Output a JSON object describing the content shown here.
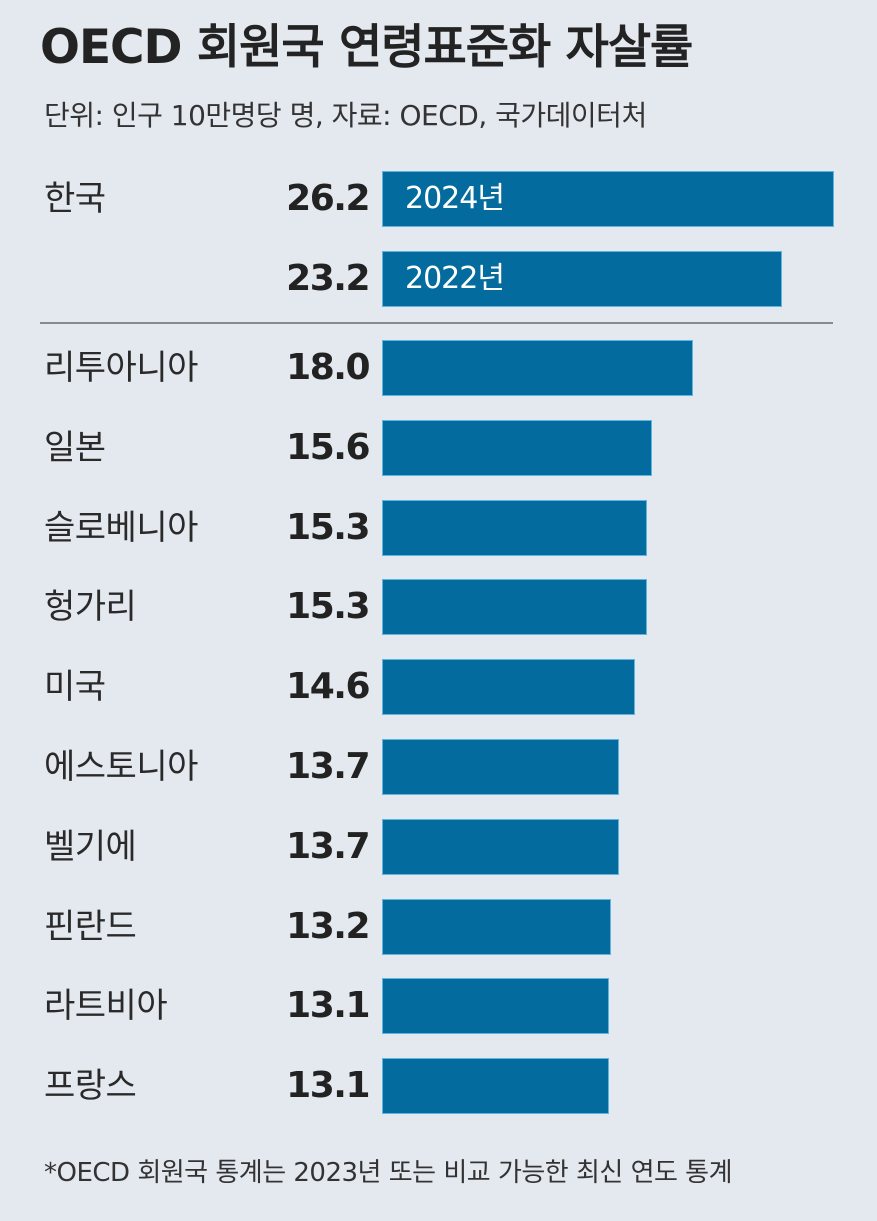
{
  "header": {
    "title": "OECD 회원국 연령표준화 자살률",
    "subtitle": "단위: 인구 10만명당 명, 자료: OECD, 국가데이터처"
  },
  "korea": [
    {
      "country": "한국",
      "value": "26.2",
      "bar_label": "2024년"
    },
    {
      "country": "",
      "value": "23.2",
      "bar_label": "2022년"
    }
  ],
  "countries": [
    {
      "country": "리투아니아",
      "value": "18.0"
    },
    {
      "country": "일본",
      "value": "15.6"
    },
    {
      "country": "슬로베니아",
      "value": "15.3"
    },
    {
      "country": "헝가리",
      "value": "15.3"
    },
    {
      "country": "미국",
      "value": "14.6"
    },
    {
      "country": "에스토니아",
      "value": "13.7"
    },
    {
      "country": "벨기에",
      "value": "13.7"
    },
    {
      "country": "핀란드",
      "value": "13.2"
    },
    {
      "country": "라트비아",
      "value": "13.1"
    },
    {
      "country": "프랑스",
      "value": "13.1"
    }
  ],
  "footnote": "*OECD 회원국 통계는 2023년 또는 비교 가능한 최신 연도 통계",
  "colors": {
    "bar": "#046b9f",
    "background": "#e4e8ef",
    "separator": "#868b92"
  },
  "chart_data": {
    "type": "bar",
    "orientation": "horizontal",
    "title": "OECD 회원국 연령표준화 자살률",
    "subtitle": "단위: 인구 10만명당 명, 자료: OECD, 국가데이터처",
    "xlabel": "",
    "ylabel": "",
    "unit": "인구 10만명당 명",
    "categories": [
      "한국 (2024년)",
      "한국 (2022년)",
      "리투아니아",
      "일본",
      "슬로베니아",
      "헝가리",
      "미국",
      "에스토니아",
      "벨기에",
      "핀란드",
      "라트비아",
      "프랑스"
    ],
    "values": [
      26.2,
      23.2,
      18.0,
      15.6,
      15.3,
      15.3,
      14.6,
      13.7,
      13.7,
      13.2,
      13.1,
      13.1
    ],
    "annotations": [
      "2024년",
      "2022년"
    ],
    "footnote": "*OECD 회원국 통계는 2023년 또는 비교 가능한 최신 연도 통계",
    "grid": false,
    "legend": null,
    "xlim": [
      0,
      26.2
    ]
  }
}
